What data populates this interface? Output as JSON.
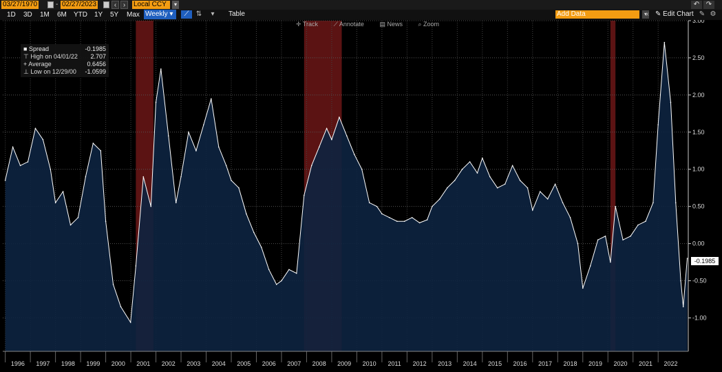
{
  "toolbar": {
    "start_date": "03/27/1970",
    "end_date": "02/27/2023",
    "currency": "Local CCY",
    "frequency": "Weekly",
    "ranges": [
      "1D",
      "3D",
      "1M",
      "6M",
      "YTD",
      "1Y",
      "5Y",
      "Max"
    ],
    "table_label": "Table",
    "add_data_placeholder": "Add Data",
    "edit_chart_label": "Edit Chart",
    "tools": [
      "Track",
      "Annotate",
      "News",
      "Zoom"
    ]
  },
  "legend": {
    "series_name": "Spread",
    "series_value": "-0.1985",
    "high_label": "High on 04/01/22",
    "high_value": "2.707",
    "avg_label": "Average",
    "avg_value": "0.6456",
    "low_label": "Low on 12/29/00",
    "low_value": "-1.0599"
  },
  "last_value_label": "-0.1985",
  "colors": {
    "accent": "#f39c12",
    "line": "#ffffff",
    "fill": "#0d2340",
    "recession": "#7a1a1a"
  },
  "chart_data": {
    "type": "area",
    "title": "",
    "xlabel": "",
    "ylabel": "",
    "ylim": [
      -1.45,
      3.0
    ],
    "yticks": [
      "3.00",
      "2.50",
      "2.00",
      "1.50",
      "1.00",
      "0.50",
      "0.00",
      "-0.50",
      "-1.00"
    ],
    "ytick_values": [
      3.0,
      2.5,
      2.0,
      1.5,
      1.0,
      0.5,
      0.0,
      -0.5,
      -1.0
    ],
    "xlim": [
      1995.9,
      2023.2
    ],
    "xticks": [
      "1996",
      "1997",
      "1998",
      "1999",
      "2000",
      "2001",
      "2002",
      "2003",
      "2004",
      "2005",
      "2006",
      "2007",
      "2008",
      "2009",
      "2010",
      "2011",
      "2012",
      "2013",
      "2014",
      "2015",
      "2016",
      "2017",
      "2018",
      "2019",
      "2020",
      "2021",
      "2022"
    ],
    "recessions": [
      [
        2001.2,
        2001.9
      ],
      [
        2007.9,
        2009.4
      ],
      [
        2020.1,
        2020.3
      ]
    ],
    "series": [
      {
        "name": "Spread",
        "x": [
          1996.0,
          1996.3,
          1996.6,
          1996.9,
          1997.2,
          1997.5,
          1997.8,
          1998.0,
          1998.3,
          1998.6,
          1998.9,
          1999.2,
          1999.5,
          1999.8,
          2000.0,
          2000.3,
          2000.6,
          2000.99,
          2001.2,
          2001.5,
          2001.8,
          2002.0,
          2002.2,
          2002.5,
          2002.8,
          2003.0,
          2003.3,
          2003.6,
          2003.9,
          2004.2,
          2004.5,
          2004.8,
          2005.0,
          2005.3,
          2005.6,
          2005.9,
          2006.2,
          2006.5,
          2006.8,
          2007.0,
          2007.3,
          2007.6,
          2007.9,
          2008.2,
          2008.5,
          2008.8,
          2009.0,
          2009.3,
          2009.6,
          2009.9,
          2010.2,
          2010.5,
          2010.8,
          2011.0,
          2011.3,
          2011.6,
          2011.9,
          2012.2,
          2012.5,
          2012.8,
          2013.0,
          2013.3,
          2013.6,
          2013.9,
          2014.2,
          2014.5,
          2014.8,
          2015.0,
          2015.3,
          2015.6,
          2015.9,
          2016.2,
          2016.5,
          2016.8,
          2017.0,
          2017.3,
          2017.6,
          2017.9,
          2018.2,
          2018.5,
          2018.8,
          2019.0,
          2019.3,
          2019.6,
          2019.9,
          2020.1,
          2020.3,
          2020.6,
          2020.9,
          2021.2,
          2021.5,
          2021.8,
          2022.0,
          2022.25,
          2022.5,
          2022.7,
          2022.9,
          2023.0,
          2023.16
        ],
        "values": [
          0.85,
          1.3,
          1.05,
          1.1,
          1.55,
          1.4,
          1.0,
          0.55,
          0.7,
          0.25,
          0.35,
          0.9,
          1.35,
          1.25,
          0.3,
          -0.55,
          -0.85,
          -1.06,
          -0.3,
          0.9,
          0.5,
          1.9,
          2.35,
          1.45,
          0.55,
          0.9,
          1.5,
          1.25,
          1.6,
          1.95,
          1.3,
          1.05,
          0.85,
          0.75,
          0.4,
          0.15,
          -0.05,
          -0.35,
          -0.55,
          -0.5,
          -0.35,
          -0.4,
          0.65,
          1.05,
          1.3,
          1.55,
          1.4,
          1.7,
          1.45,
          1.2,
          1.0,
          0.55,
          0.5,
          0.4,
          0.35,
          0.3,
          0.3,
          0.35,
          0.28,
          0.32,
          0.5,
          0.6,
          0.75,
          0.85,
          1.0,
          1.1,
          0.95,
          1.15,
          0.9,
          0.75,
          0.8,
          1.05,
          0.85,
          0.75,
          0.45,
          0.7,
          0.6,
          0.8,
          0.55,
          0.35,
          0.0,
          -0.6,
          -0.3,
          0.05,
          0.1,
          -0.25,
          0.5,
          0.05,
          0.1,
          0.25,
          0.3,
          0.55,
          1.6,
          2.707,
          1.9,
          0.55,
          -0.5,
          -0.85,
          -0.1985
        ]
      }
    ]
  }
}
